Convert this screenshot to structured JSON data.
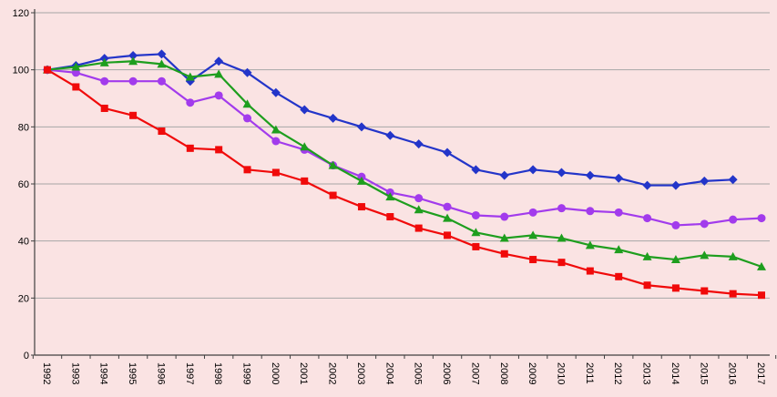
{
  "chart": {
    "background": "#fae3e3",
    "gridline_color": "#a6a6a6",
    "axis_color": "#404040"
  },
  "chart_data": {
    "type": "line",
    "title": "",
    "xlabel": "",
    "ylabel": "",
    "legend": "none",
    "grid": true,
    "ylim": [
      0,
      120
    ],
    "yticks": [
      0,
      20,
      40,
      60,
      80,
      100,
      120
    ],
    "categories": [
      "1992",
      "1993",
      "1994",
      "1995",
      "1996",
      "1997",
      "1998",
      "1999",
      "2000",
      "2001",
      "2002",
      "2003",
      "2004",
      "2005",
      "2006",
      "2007",
      "2008",
      "2009",
      "2010",
      "2011",
      "2012",
      "2013",
      "2014",
      "2015",
      "2016",
      "2017"
    ],
    "series": [
      {
        "name": "blue-diamond",
        "marker": "diamond",
        "color": "#2335c9",
        "values": [
          100,
          101.5,
          104,
          105,
          105.5,
          96,
          103,
          99,
          92,
          86,
          83,
          80,
          77,
          74,
          71,
          65,
          63,
          65,
          64,
          63,
          62,
          59.5,
          59.5,
          61,
          61.5,
          null
        ]
      },
      {
        "name": "purple-circle",
        "marker": "circle",
        "color": "#a23bec",
        "values": [
          100,
          99,
          96,
          96,
          96,
          88.5,
          91,
          83,
          75,
          72,
          66.5,
          62.5,
          57,
          55,
          52,
          49,
          48.5,
          50,
          51.5,
          50.5,
          50,
          48,
          45.5,
          46,
          47.5,
          48
        ]
      },
      {
        "name": "green-triangle",
        "marker": "triangle",
        "color": "#1e9e1e",
        "values": [
          100,
          101,
          102.5,
          103,
          102,
          97.5,
          98.5,
          88,
          79,
          73,
          66.5,
          61,
          55.5,
          51,
          48,
          43,
          41,
          42,
          41,
          38.5,
          37,
          34.5,
          33.5,
          35,
          34.5,
          31
        ]
      },
      {
        "name": "red-square",
        "marker": "square",
        "color": "#f00a0a",
        "values": [
          100,
          94,
          86.5,
          84,
          78.5,
          72.5,
          72,
          65,
          64,
          61,
          56,
          52,
          48.5,
          44.5,
          42,
          38,
          35.5,
          33.5,
          32.5,
          29.5,
          27.5,
          24.5,
          23.5,
          22.5,
          21.5,
          21
        ]
      }
    ]
  }
}
